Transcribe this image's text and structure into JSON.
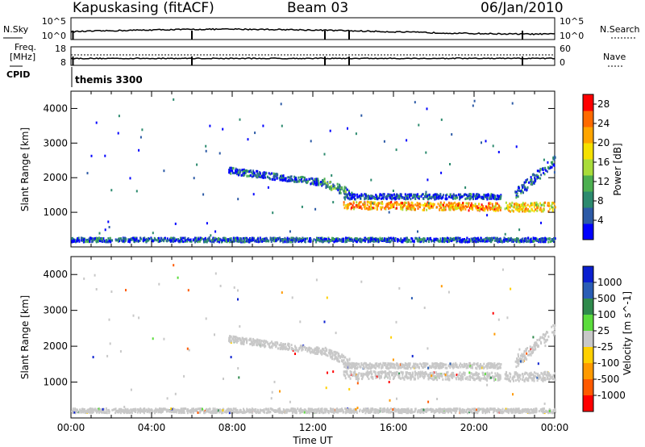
{
  "header": {
    "station": "Kapuskasing (fitACF)",
    "beam": "Beam 03",
    "date": "06/Jan/2010"
  },
  "aux_panels": {
    "nsky_label": "N.Sky",
    "nsearch_label": "N.Search",
    "freq_label": "Freq.",
    "freq_unit": "[MHz]",
    "nave_label": "Nave",
    "cpid_label": "CPID",
    "cpid_value": "themis 3300",
    "noise_ticks_left": [
      "10^5",
      "10^0"
    ],
    "noise_ticks_right": [
      "10^5",
      "10^0"
    ],
    "freq_ticks_left": [
      "18",
      "8"
    ],
    "freq_ticks_right": [
      "60",
      "0"
    ]
  },
  "colors": {
    "power": [
      "#0000ff",
      "#2c5aa6",
      "#2c8a6e",
      "#4caf50",
      "#a9dc3a",
      "#f5e100",
      "#ffa500",
      "#ff6a00",
      "#ff0000"
    ],
    "velocity": [
      "#0a1fd0",
      "#2a5db5",
      "#2f8a4c",
      "#5bdc3c",
      "#c8c8c8",
      "#ffd000",
      "#ff9a00",
      "#ff5a00",
      "#ff0000"
    ],
    "ground_scatter": "#c8c8c8"
  },
  "chart_data": [
    {
      "type": "heatmap",
      "panel": "power",
      "ylabel": "Slant Range [km]",
      "ylim": [
        0,
        4500
      ],
      "xlim": [
        "00:00",
        "24:00"
      ],
      "x_ticks": [
        "00:00",
        "04:00",
        "08:00",
        "12:00",
        "16:00",
        "20:00",
        "00:00"
      ],
      "y_ticks": [
        1000,
        2000,
        3000,
        4000
      ],
      "colorbar_label": "Power [dB]",
      "colorbar_ticks": [
        "4",
        "8",
        "12",
        "16",
        "20",
        "24",
        "28"
      ],
      "colorbar_range": [
        0,
        30
      ],
      "bands": [
        {
          "t_start": 7.8,
          "t_end": 12.5,
          "r_start": 2200,
          "r_end": 1850,
          "width": 180,
          "level": 1
        },
        {
          "t_start": 12.5,
          "t_end": 13.8,
          "r_start": 1850,
          "r_end": 1550,
          "width": 250,
          "level": 2
        },
        {
          "t_start": 13.5,
          "t_end": 21.3,
          "r_start": 1200,
          "r_end": 1150,
          "width": 220,
          "level": 6
        },
        {
          "t_start": 13.5,
          "t_end": 21.3,
          "r_start": 1450,
          "r_end": 1450,
          "width": 150,
          "level": 1
        },
        {
          "t_start": 21.5,
          "t_end": 24,
          "r_start": 1150,
          "r_end": 1150,
          "width": 260,
          "level": 5
        },
        {
          "t_start": 22,
          "t_end": 24,
          "r_start": 1500,
          "r_end": 2500,
          "width": 300,
          "level": 1
        },
        {
          "t_start": 0,
          "t_end": 24,
          "r_start": 200,
          "r_end": 200,
          "width": 120,
          "level": 1
        }
      ]
    },
    {
      "type": "heatmap",
      "panel": "velocity",
      "ylabel": "Slant Range [km]",
      "ylim": [
        0,
        4500
      ],
      "xlim": [
        "00:00",
        "24:00"
      ],
      "xlabel": "Time UT",
      "x_ticks": [
        "00:00",
        "04:00",
        "08:00",
        "12:00",
        "16:00",
        "20:00",
        "00:00"
      ],
      "y_ticks": [
        1000,
        2000,
        3000,
        4000
      ],
      "colorbar_label": "Velocity [m s^-1]",
      "colorbar_ticks": [
        "1000",
        "500",
        "100",
        "25",
        "-25",
        "-100",
        "-500",
        "-1000"
      ],
      "colorbar_range": [
        -1000,
        1000
      ],
      "bands": [
        {
          "t_start": 7.8,
          "t_end": 12.5,
          "r_start": 2200,
          "r_end": 1850,
          "width": 180
        },
        {
          "t_start": 12.5,
          "t_end": 13.8,
          "r_start": 1850,
          "r_end": 1550,
          "width": 250
        },
        {
          "t_start": 13.5,
          "t_end": 21.3,
          "r_start": 1200,
          "r_end": 1150,
          "width": 220
        },
        {
          "t_start": 13.5,
          "t_end": 21.3,
          "r_start": 1450,
          "r_end": 1450,
          "width": 150
        },
        {
          "t_start": 21.5,
          "t_end": 24,
          "r_start": 1150,
          "r_end": 1150,
          "width": 260
        },
        {
          "t_start": 22,
          "t_end": 24,
          "r_start": 1500,
          "r_end": 2500,
          "width": 300
        },
        {
          "t_start": 0,
          "t_end": 24,
          "r_start": 200,
          "r_end": 200,
          "width": 120
        }
      ]
    }
  ]
}
